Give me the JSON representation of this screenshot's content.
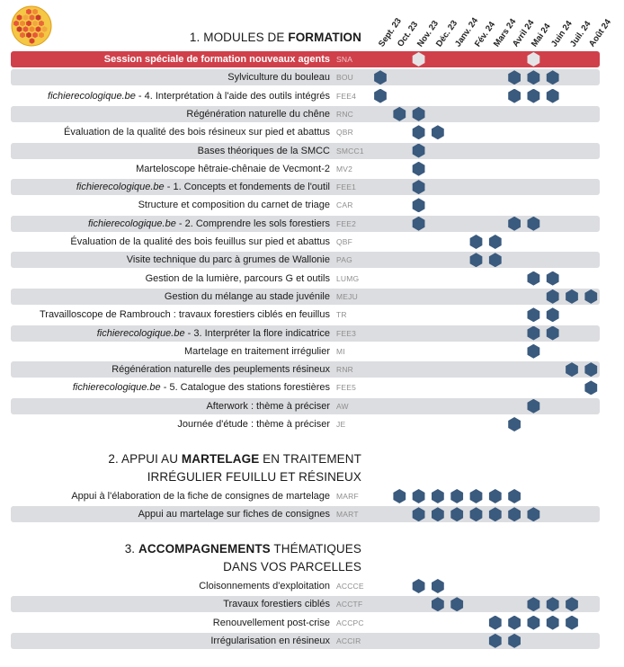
{
  "colors": {
    "accent_red": "#d0404a",
    "hex_blue": "#3a5a7e",
    "hex_light": "#e4e4e6",
    "row_shade": "#dcdde0"
  },
  "months": [
    "Sept. 23",
    "Oct. 23",
    "Nov. 23",
    "Déc. 23",
    "Janv. 24",
    "Fév. 24",
    "Mars 24",
    "Avril 24",
    "Mai 24",
    "Juin 24",
    "Juil. 24",
    "Août 24"
  ],
  "sections": [
    {
      "title_pre": "1. MODULES DE ",
      "title_bold": "FORMATION",
      "title_post": "",
      "title_line2": "",
      "rows": [
        {
          "italic": "",
          "label": "Session spéciale de formation nouveaux agents",
          "code": "SNA",
          "months": [
            2,
            8
          ],
          "style": "highlight"
        },
        {
          "italic": "",
          "label": "Sylviculture du bouleau",
          "code": "BOU",
          "months": [
            0,
            7,
            8,
            9
          ]
        },
        {
          "italic": "fichierecologique.be",
          "label": " - 4. Interprétation à l'aide des outils intégrés",
          "code": "FEE4",
          "months": [
            0,
            7,
            8,
            9
          ]
        },
        {
          "italic": "",
          "label": "Régénération naturelle du chêne",
          "code": "RNC",
          "months": [
            1,
            2
          ]
        },
        {
          "italic": "",
          "label": "Évaluation de la qualité des bois résineux sur pied et abattus",
          "code": "QBR",
          "months": [
            2,
            3
          ]
        },
        {
          "italic": "",
          "label": "Bases théoriques de la SMCC",
          "code": "SMCC1",
          "months": [
            2
          ]
        },
        {
          "italic": "",
          "label": "Marteloscope hêtraie-chênaie de Vecmont-2",
          "code": "MV2",
          "months": [
            2
          ]
        },
        {
          "italic": "fichierecologique.be",
          "label": " - 1. Concepts et fondements de l'outil",
          "code": "FEE1",
          "months": [
            2
          ]
        },
        {
          "italic": "",
          "label": "Structure et composition du carnet de triage",
          "code": "CAR",
          "months": [
            2
          ]
        },
        {
          "italic": "fichierecologique.be",
          "label": " - 2. Comprendre les sols forestiers",
          "code": "FEE2",
          "months": [
            2,
            7,
            8
          ]
        },
        {
          "italic": "",
          "label": "Évaluation de la qualité des bois feuillus sur pied et abattus",
          "code": "QBF",
          "months": [
            5,
            6
          ]
        },
        {
          "italic": "",
          "label": "Visite technique du parc à grumes de Wallonie",
          "code": "PAG",
          "months": [
            5,
            6
          ]
        },
        {
          "italic": "",
          "label": "Gestion de la lumière, parcours G et outils",
          "code": "LUMG",
          "months": [
            8,
            9
          ]
        },
        {
          "italic": "",
          "label": "Gestion du mélange au stade juvénile",
          "code": "MEJU",
          "months": [
            9,
            10,
            11
          ]
        },
        {
          "italic": "",
          "label": "Travailloscope de Rambrouch : travaux forestiers ciblés en feuillus",
          "code": "TR",
          "months": [
            8,
            9
          ]
        },
        {
          "italic": "fichierecologique.be",
          "label": " - 3. Interpréter la flore indicatrice",
          "code": "FEE3",
          "months": [
            8,
            9
          ]
        },
        {
          "italic": "",
          "label": "Martelage en traitement irrégulier",
          "code": "MI",
          "months": [
            8
          ]
        },
        {
          "italic": "",
          "label": "Régénération naturelle des peuplements résineux",
          "code": "RNR",
          "months": [
            10,
            11
          ]
        },
        {
          "italic": "fichierecologique.be",
          "label": " - 5. Catalogue des stations forestières",
          "code": "FEE5",
          "months": [
            11
          ]
        },
        {
          "italic": "",
          "label": "Afterwork : thème à préciser",
          "code": "AW",
          "months": [
            8
          ]
        },
        {
          "italic": "",
          "label": "Journée d'étude : thème à préciser",
          "code": "JE",
          "months": [
            7
          ]
        }
      ]
    },
    {
      "title_pre": "2. APPUI AU ",
      "title_bold": "MARTELAGE",
      "title_post": " EN TRAITEMENT",
      "title_line2": "IRRÉGULIER FEUILLU ET RÉSINEUX",
      "rows": [
        {
          "italic": "",
          "label": "Appui à l'élaboration de la fiche de consignes de martelage",
          "code": "MARF",
          "months": [
            1,
            2,
            3,
            4,
            5,
            6,
            7
          ]
        },
        {
          "italic": "",
          "label": "Appui au martelage sur fiches de consignes",
          "code": "MART",
          "months": [
            2,
            3,
            4,
            5,
            6,
            7,
            8
          ]
        }
      ]
    },
    {
      "title_pre": "3. ",
      "title_bold": "ACCOMPAGNEMENTS",
      "title_post": " THÉMATIQUES",
      "title_line2": "DANS VOS PARCELLES",
      "rows": [
        {
          "italic": "",
          "label": "Cloisonnements d'exploitation",
          "code": "ACCCE",
          "months": [
            2,
            3
          ]
        },
        {
          "italic": "",
          "label": "Travaux forestiers ciblés",
          "code": "ACCTF",
          "months": [
            3,
            4,
            8,
            9,
            10
          ]
        },
        {
          "italic": "",
          "label": "Renouvellement post-crise",
          "code": "ACCPC",
          "months": [
            6,
            7,
            8,
            9,
            10
          ]
        },
        {
          "italic": "",
          "label": "Irrégularisation en résineux",
          "code": "ACCIR",
          "months": [
            6,
            7
          ]
        }
      ]
    }
  ]
}
